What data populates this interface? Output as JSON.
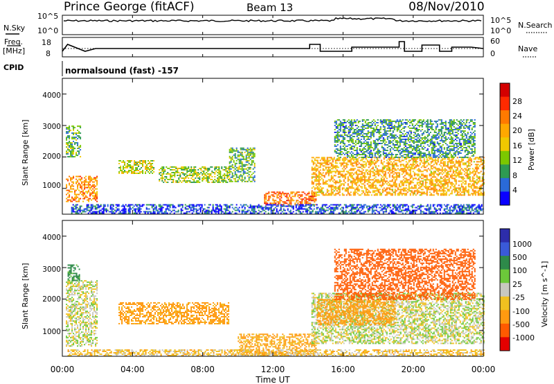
{
  "header": {
    "title": "Prince George (fitACF)",
    "beam": "Beam 13",
    "date": "08/Nov/2010"
  },
  "strip_labels": {
    "nsky": "N.Sky",
    "nsearch": "N.Search",
    "freq_line1": "Freq.",
    "freq_line2": "[MHz]",
    "nave": "Nave",
    "cpid": "CPID",
    "cpid_value": "normalsound (fast) -157"
  },
  "noise_axis": {
    "left_ticks": [
      "10^5",
      "10^0"
    ],
    "right_ticks": [
      "10^5",
      "10^0"
    ]
  },
  "freq_axis": {
    "left_ticks": [
      "18",
      "8"
    ],
    "right_ticks": [
      "60",
      "0"
    ]
  },
  "time_axis": {
    "label": "Time UT",
    "ticks": [
      "00:00",
      "04:00",
      "08:00",
      "12:00",
      "16:00",
      "20:00",
      "00:00"
    ]
  },
  "power_colorbar": {
    "label": "Power [dB]",
    "ticks": [
      "28",
      "24",
      "20",
      "16",
      "12",
      "8",
      "4"
    ],
    "colors": [
      "#d40000",
      "#ff2a00",
      "#ff7a00",
      "#ffa800",
      "#f0c800",
      "#7cc800",
      "#2e9a52",
      "#2a6ad8",
      "#0a00ff"
    ]
  },
  "velocity_colorbar": {
    "label": "Velocity [m s^-1]",
    "ticks": [
      "1000",
      "500",
      "100",
      "25",
      "-25",
      "-100",
      "-500",
      "-1000"
    ],
    "colors": [
      "#2d2daa",
      "#3a5ad8",
      "#2e8a4a",
      "#6cc83a",
      "#c8c8c0",
      "#f0c020",
      "#ff9a10",
      "#ff5a00",
      "#e40000"
    ]
  },
  "chart_data": [
    {
      "type": "heatmap",
      "name": "power",
      "ylabel": "Slant Range [km]",
      "xlabel": "",
      "yticks": [
        "1000",
        "2000",
        "3000",
        "4000"
      ],
      "ylim": [
        180,
        4500
      ],
      "xlim_hours": [
        0,
        24
      ],
      "regions": [
        {
          "t0": 0.2,
          "t1": 2.0,
          "r0": 600,
          "r1": 1400,
          "p": 20
        },
        {
          "t0": 0.2,
          "t1": 1.0,
          "r0": 2000,
          "r1": 3000,
          "p": 10
        },
        {
          "t0": 3.2,
          "t1": 5.2,
          "r0": 1500,
          "r1": 1900,
          "p": 14
        },
        {
          "t0": 5.5,
          "t1": 9.5,
          "r0": 1200,
          "r1": 1700,
          "p": 12
        },
        {
          "t0": 9.5,
          "t1": 11.0,
          "r0": 1200,
          "r1": 2300,
          "p": 10
        },
        {
          "t0": 11.5,
          "t1": 14.5,
          "r0": 500,
          "r1": 900,
          "p": 22
        },
        {
          "t0": 14.2,
          "t1": 24.0,
          "r0": 800,
          "r1": 2000,
          "p": 18
        },
        {
          "t0": 15.5,
          "t1": 23.5,
          "r0": 2000,
          "r1": 3200,
          "p": 8
        },
        {
          "t0": 0.5,
          "t1": 24.0,
          "r0": 200,
          "r1": 500,
          "p": 4
        }
      ]
    },
    {
      "type": "heatmap",
      "name": "velocity",
      "ylabel": "Slant Range [km]",
      "xlabel": "Time UT",
      "yticks": [
        "1000",
        "2000",
        "3000",
        "4000"
      ],
      "ylim": [
        180,
        4500
      ],
      "xlim_hours": [
        0,
        24
      ],
      "regions": [
        {
          "t0": 0.2,
          "t1": 2.0,
          "r0": 500,
          "r1": 2600,
          "v": 0
        },
        {
          "t0": 0.3,
          "t1": 1.0,
          "r0": 2600,
          "r1": 3100,
          "v": 150
        },
        {
          "t0": 3.2,
          "t1": 9.5,
          "r0": 1200,
          "r1": 1900,
          "v": -150
        },
        {
          "t0": 10.0,
          "t1": 14.5,
          "r0": 200,
          "r1": 900,
          "v": -120
        },
        {
          "t0": 14.2,
          "t1": 24.0,
          "r0": 600,
          "r1": 2200,
          "v": 0
        },
        {
          "t0": 14.5,
          "t1": 19.0,
          "r0": 1200,
          "r1": 2000,
          "v": -160
        },
        {
          "t0": 15.5,
          "t1": 23.5,
          "r0": 2000,
          "r1": 3600,
          "v": -600
        },
        {
          "t0": 0.3,
          "t1": 24.0,
          "r0": 180,
          "r1": 400,
          "v": -60
        }
      ]
    }
  ]
}
